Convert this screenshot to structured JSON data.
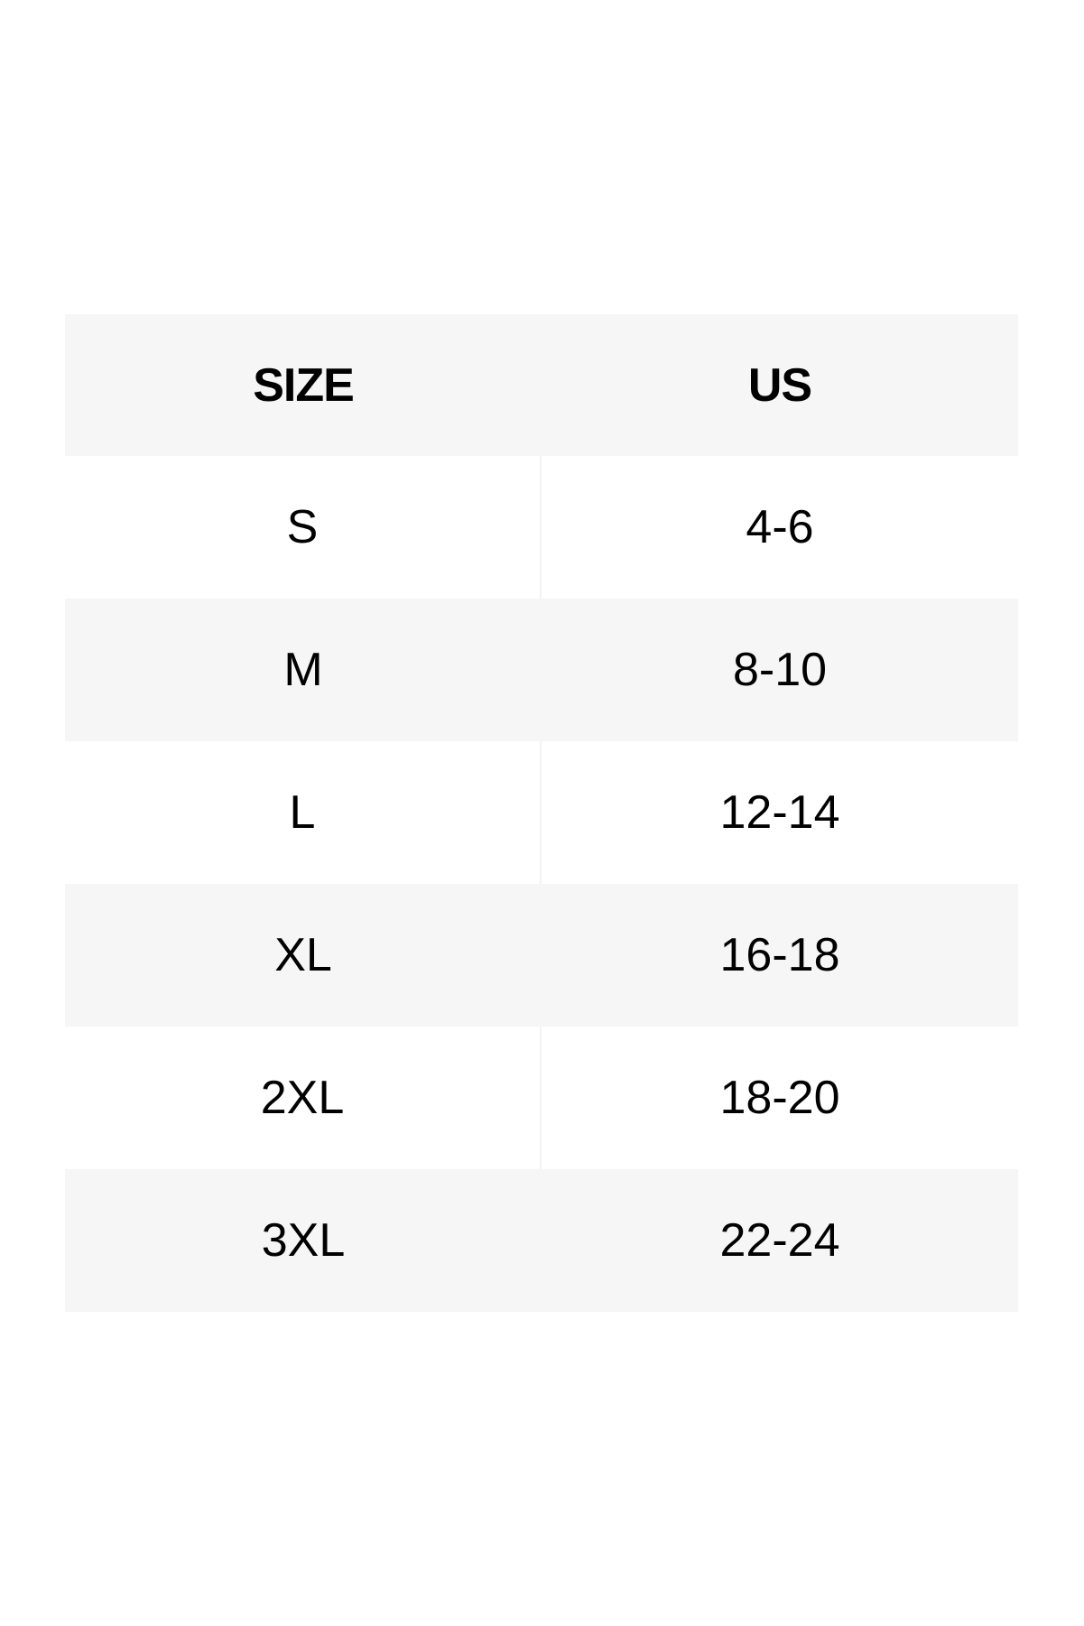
{
  "table": {
    "headers": [
      "SIZE",
      "US"
    ],
    "rows": [
      [
        "S",
        "4-6"
      ],
      [
        "M",
        "8-10"
      ],
      [
        "L",
        "12-14"
      ],
      [
        "XL",
        "16-18"
      ],
      [
        "2XL",
        "18-20"
      ],
      [
        "3XL",
        "22-24"
      ]
    ],
    "colors": {
      "stripe": "#f6f6f6",
      "background": "#ffffff",
      "text": "#000000"
    }
  }
}
